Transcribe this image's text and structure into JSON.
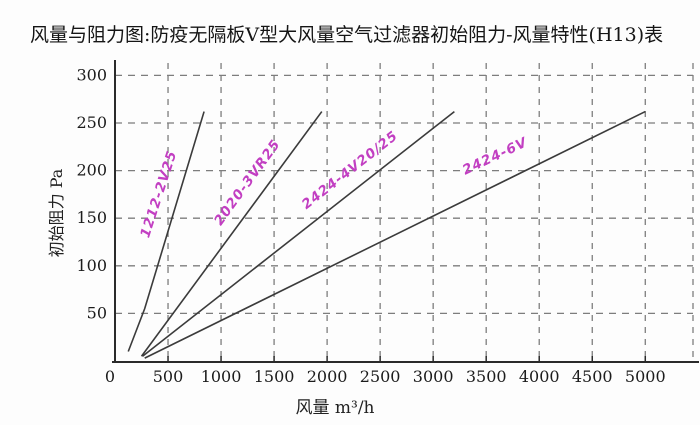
{
  "page": {
    "title": "风量与阻力图:防疫无隔板V型大风量空气过滤器初始阻力-风量特性(H13)表"
  },
  "chart_data": {
    "type": "line",
    "title": "风量与阻力图:防疫无隔板V型大风量空气过滤器初始阻力-风量特性(H13)表",
    "xlabel": "风量  m³/h",
    "ylabel": "初始阻力 Pa",
    "xlim": [
      0,
      5450
    ],
    "ylim": [
      0,
      313
    ],
    "x_ticks": [
      0,
      500,
      1000,
      1500,
      2000,
      2500,
      3000,
      3500,
      4000,
      4500,
      5000
    ],
    "y_ticks": [
      50,
      100,
      150,
      200,
      250,
      300
    ],
    "grid": true,
    "grid_style": "dashed",
    "legend_position": "inline-rotated-labels",
    "colors": {
      "line": "#3b3b3b",
      "grid": "#7d7d7d",
      "axis": "#2a2a2a",
      "tick_text": "#1c1c1c",
      "series_label": "#c23fc2"
    },
    "series": [
      {
        "name": "1212-2V25",
        "points": [
          [
            125,
            10
          ],
          [
            280,
            55
          ],
          [
            840,
            262
          ]
        ],
        "label_at": [
          450,
          174
        ],
        "label_rotation": -72
      },
      {
        "name": "2020-3VR25",
        "points": [
          [
            250,
            5
          ],
          [
            1950,
            262
          ]
        ],
        "label_at": [
          1280,
          185
        ],
        "label_rotation": -54
      },
      {
        "name": "2424-4V20/25",
        "points": [
          [
            260,
            5
          ],
          [
            3200,
            262
          ]
        ],
        "label_at": [
          2240,
          197
        ],
        "label_rotation": -38
      },
      {
        "name": "2424-6V",
        "points": [
          [
            280,
            3
          ],
          [
            5000,
            262
          ]
        ],
        "label_at": [
          3600,
          211
        ],
        "label_rotation": -25
      }
    ]
  }
}
